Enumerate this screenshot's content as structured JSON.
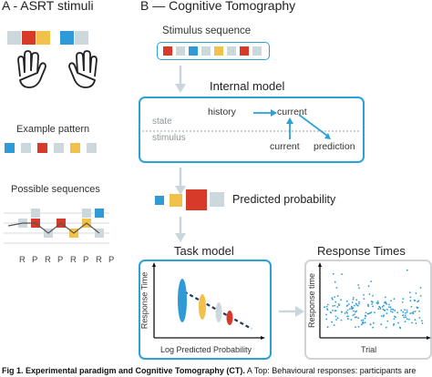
{
  "panel_a": {
    "title": "A - ASRT stimuli",
    "example_label": "Example pattern",
    "possible_label": "Possible sequences",
    "rp_labels": [
      "R",
      "P",
      "R",
      "P",
      "R",
      "P",
      "R",
      "P"
    ]
  },
  "panel_b": {
    "title": "B — Cognitive Tomography",
    "stimulus_sequence": "Stimulus sequence",
    "internal_model": "Internal model",
    "state": "state",
    "stimulus": "stimulus",
    "history": "history",
    "current_top": "current",
    "current_bottom": "current",
    "prediction": "prediction",
    "predicted_probability": "Predicted probability",
    "task_model": "Task model",
    "response_times": "Response Times",
    "task_ylabel": "Response Time",
    "task_xlabel": "Log Predicted Probability",
    "rt_ylabel": "Response time",
    "rt_xlabel": "Trial"
  },
  "colors": {
    "red": "#d83a2a",
    "blue": "#2e9ad8",
    "yellow": "#f2c14a",
    "gray": "#cdd8dd",
    "darkblue": "#1e3a5f",
    "accent": "#2aa2d8"
  },
  "caption": {
    "bold": "Fig 1. Experimental paradigm and Cognitive Tomography (CT).",
    "rest": " A Top: Behavioural responses: participants are"
  }
}
